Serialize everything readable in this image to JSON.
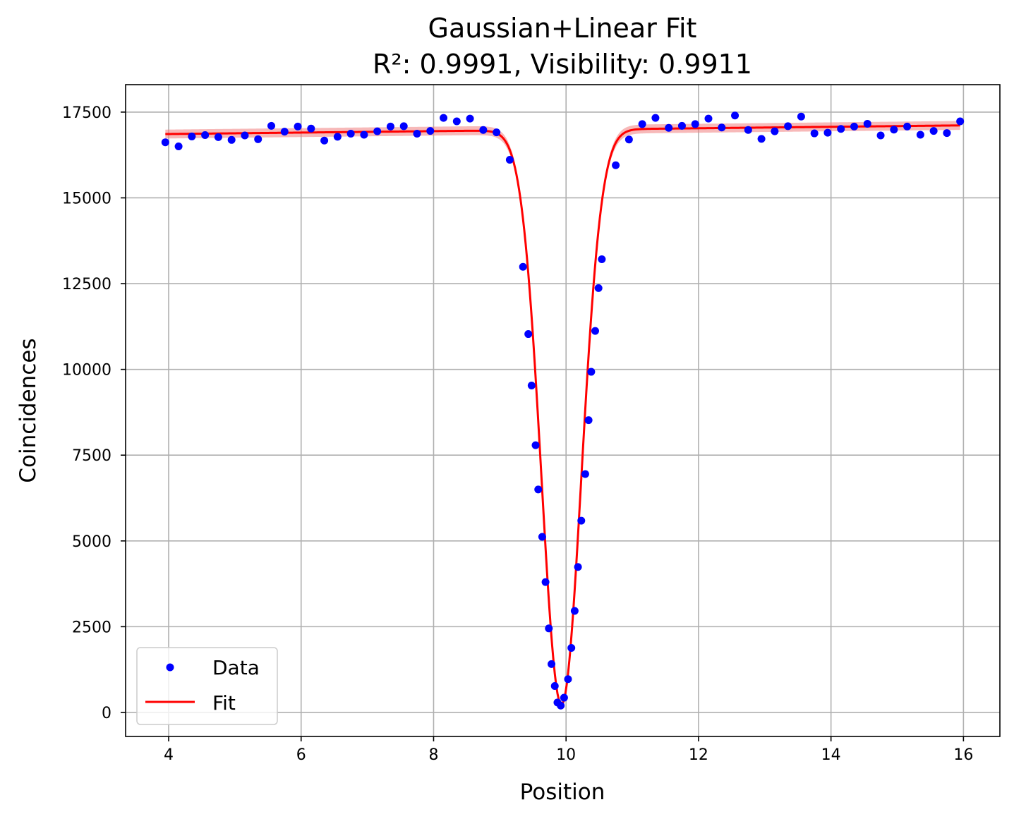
{
  "chart_data": {
    "type": "scatter",
    "title": "Gaussian+Linear Fit",
    "subtitle": "R²: 0.9991, Visibility: 0.9911",
    "xlabel": "Position",
    "ylabel": "Coincidences",
    "xlim": [
      3.35,
      16.55
    ],
    "ylim": [
      -700,
      18300
    ],
    "xticks": [
      4,
      6,
      8,
      10,
      12,
      14,
      16
    ],
    "yticks": [
      0,
      2500,
      5000,
      7500,
      10000,
      12500,
      15000,
      17500
    ],
    "grid": true,
    "legend": {
      "placement": "lower-left",
      "entries": [
        "Data",
        "Fit"
      ]
    },
    "colors": {
      "data": "#0000ff",
      "fit": "#ff0000",
      "band": "#f08080",
      "grid": "#b0b0b0"
    },
    "series": [
      {
        "name": "Data",
        "style": "markers",
        "points": [
          [
            3.95,
            16620
          ],
          [
            4.15,
            16500
          ],
          [
            4.35,
            16790
          ],
          [
            4.55,
            16830
          ],
          [
            4.75,
            16770
          ],
          [
            4.95,
            16690
          ],
          [
            5.15,
            16820
          ],
          [
            5.35,
            16710
          ],
          [
            5.55,
            17100
          ],
          [
            5.75,
            16930
          ],
          [
            5.95,
            17080
          ],
          [
            6.15,
            17020
          ],
          [
            6.35,
            16670
          ],
          [
            6.55,
            16780
          ],
          [
            6.75,
            16870
          ],
          [
            6.95,
            16840
          ],
          [
            7.15,
            16940
          ],
          [
            7.35,
            17080
          ],
          [
            7.55,
            17090
          ],
          [
            7.75,
            16870
          ],
          [
            7.95,
            16950
          ],
          [
            8.15,
            17330
          ],
          [
            8.35,
            17230
          ],
          [
            8.55,
            17310
          ],
          [
            8.75,
            16980
          ],
          [
            8.95,
            16910
          ],
          [
            9.15,
            16110
          ],
          [
            9.35,
            12990
          ],
          [
            9.43,
            11030
          ],
          [
            9.48,
            9530
          ],
          [
            9.54,
            7790
          ],
          [
            9.58,
            6500
          ],
          [
            9.64,
            5120
          ],
          [
            9.69,
            3800
          ],
          [
            9.74,
            2450
          ],
          [
            9.78,
            1410
          ],
          [
            9.83,
            770
          ],
          [
            9.87,
            290
          ],
          [
            9.92,
            200
          ],
          [
            9.97,
            430
          ],
          [
            10.03,
            970
          ],
          [
            10.08,
            1880
          ],
          [
            10.13,
            2960
          ],
          [
            10.18,
            4240
          ],
          [
            10.23,
            5590
          ],
          [
            10.29,
            6950
          ],
          [
            10.34,
            8520
          ],
          [
            10.38,
            9930
          ],
          [
            10.44,
            11120
          ],
          [
            10.49,
            12370
          ],
          [
            10.54,
            13210
          ],
          [
            10.75,
            15950
          ],
          [
            10.95,
            16700
          ],
          [
            11.15,
            17150
          ],
          [
            11.35,
            17330
          ],
          [
            11.55,
            17040
          ],
          [
            11.75,
            17100
          ],
          [
            11.95,
            17150
          ],
          [
            12.15,
            17310
          ],
          [
            12.35,
            17050
          ],
          [
            12.55,
            17400
          ],
          [
            12.75,
            16980
          ],
          [
            12.95,
            16720
          ],
          [
            13.15,
            16940
          ],
          [
            13.35,
            17090
          ],
          [
            13.55,
            17370
          ],
          [
            13.75,
            16880
          ],
          [
            13.95,
            16900
          ],
          [
            14.15,
            17010
          ],
          [
            14.35,
            17080
          ],
          [
            14.55,
            17160
          ],
          [
            14.75,
            16820
          ],
          [
            14.95,
            16990
          ],
          [
            15.15,
            17080
          ],
          [
            15.35,
            16840
          ],
          [
            15.55,
            16950
          ],
          [
            15.75,
            16890
          ],
          [
            15.95,
            17230
          ]
        ]
      },
      {
        "name": "Fit",
        "style": "line",
        "model": {
          "slope": 21.0,
          "intercept": 16777,
          "amplitude": 16760,
          "center": 9.93,
          "sigma": 0.3,
          "x_range": [
            3.95,
            15.95
          ]
        }
      }
    ]
  }
}
